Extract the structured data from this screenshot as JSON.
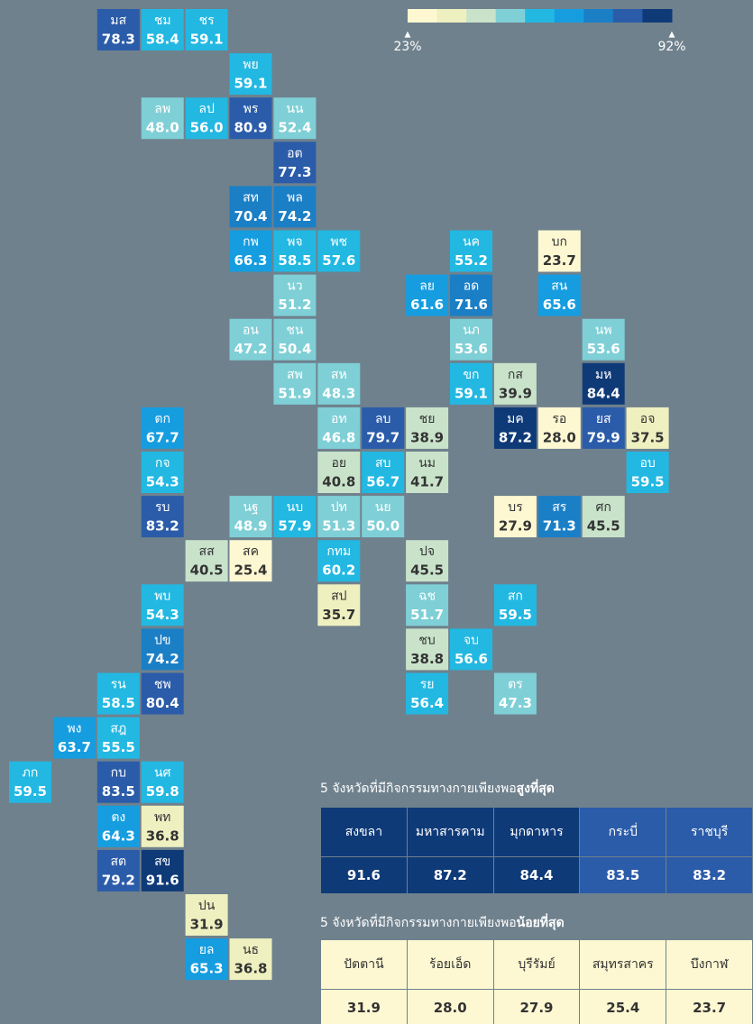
{
  "legend": {
    "colors": [
      "#fdf8d2",
      "#eef0c0",
      "#c9e3cb",
      "#7fcfd6",
      "#22b8e2",
      "#159de0",
      "#1b7fc6",
      "#2b5ca9",
      "#0f3a78"
    ],
    "min": {
      "value": 23,
      "label": "23%"
    },
    "max": {
      "value": 92,
      "label": "92%"
    }
  },
  "tiles": [
    {
      "name": "มส",
      "value": 78.3
    },
    {
      "name": "ชม",
      "value": 58.4
    },
    {
      "name": "ชร",
      "value": 59.1
    },
    {
      "name": "พย",
      "value": 59.1
    },
    {
      "name": "ลพ",
      "value": 48,
      "label": "48.0"
    },
    {
      "name": "ลป",
      "value": 56,
      "label": "56.0"
    },
    {
      "name": "พร",
      "value": 80.9
    },
    {
      "name": "นน",
      "value": 52.4
    },
    {
      "name": "อต",
      "value": 77.3
    },
    {
      "name": "สท",
      "value": 70.4
    },
    {
      "name": "พล",
      "value": 74.2
    },
    {
      "name": "กพ",
      "value": 66.3
    },
    {
      "name": "พจ",
      "value": 58.5
    },
    {
      "name": "พช",
      "value": 57.6
    },
    {
      "name": "นค",
      "value": 55.2
    },
    {
      "name": "บก",
      "value": 23.7
    },
    {
      "name": "นว",
      "value": 51.2
    },
    {
      "name": "ลย",
      "value": 61.6
    },
    {
      "name": "อด",
      "value": 71.6
    },
    {
      "name": "สน",
      "value": 65.6
    },
    {
      "name": "อน",
      "value": 47.2
    },
    {
      "name": "ชน",
      "value": 50.4
    },
    {
      "name": "นภ",
      "value": 53.6
    },
    {
      "name": "นพ",
      "value": 53.6
    },
    {
      "name": "สพ",
      "value": 51.9
    },
    {
      "name": "สห",
      "value": 48.3
    },
    {
      "name": "ขก",
      "value": 59.1
    },
    {
      "name": "กส",
      "value": 39.9
    },
    {
      "name": "มห",
      "value": 84.4
    },
    {
      "name": "ตก",
      "value": 67.7
    },
    {
      "name": "อท",
      "value": 46.8
    },
    {
      "name": "ลบ",
      "value": 79.7
    },
    {
      "name": "ชย",
      "value": 38.9
    },
    {
      "name": "มค",
      "value": 87.2
    },
    {
      "name": "รอ",
      "value": 28,
      "label": "28.0"
    },
    {
      "name": "ยส",
      "value": 79.9
    },
    {
      "name": "อจ",
      "value": 37.5
    },
    {
      "name": "กจ",
      "value": 54.3
    },
    {
      "name": "อย",
      "value": 40.8
    },
    {
      "name": "สบ",
      "value": 56.7
    },
    {
      "name": "นม",
      "value": 41.7
    },
    {
      "name": "อบ",
      "value": 59.5
    },
    {
      "name": "รบ",
      "value": 83.2
    },
    {
      "name": "นฐ",
      "value": 48.9
    },
    {
      "name": "นบ",
      "value": 57.9
    },
    {
      "name": "ปท",
      "value": 51.3
    },
    {
      "name": "นย",
      "value": 50,
      "label": "50.0"
    },
    {
      "name": "บร",
      "value": 27.9
    },
    {
      "name": "สร",
      "value": 71.3
    },
    {
      "name": "ศก",
      "value": 45.5
    },
    {
      "name": "สส",
      "value": 40.5
    },
    {
      "name": "สค",
      "value": 25.4
    },
    {
      "name": "กทม",
      "value": 60.2
    },
    {
      "name": "ปจ",
      "value": 45.5
    },
    {
      "name": "พบ",
      "value": 54.3
    },
    {
      "name": "สป",
      "value": 35.7
    },
    {
      "name": "ฉช",
      "value": 51.7
    },
    {
      "name": "สก",
      "value": 59.5
    },
    {
      "name": "ปข",
      "value": 74.2
    },
    {
      "name": "ชบ",
      "value": 38.8
    },
    {
      "name": "จบ",
      "value": 56.6
    },
    {
      "name": "รน",
      "value": 58.5
    },
    {
      "name": "ชพ",
      "value": 80.4
    },
    {
      "name": "รย",
      "value": 56.4
    },
    {
      "name": "ตร",
      "value": 47.3
    },
    {
      "name": "พง",
      "value": 63.7
    },
    {
      "name": "สฎ",
      "value": 55.5
    },
    {
      "name": "ภก",
      "value": 59.5
    },
    {
      "name": "กบ",
      "value": 83.5
    },
    {
      "name": "นศ",
      "value": 59.8
    },
    {
      "name": "ตง",
      "value": 64.3
    },
    {
      "name": "พท",
      "value": 36.8
    },
    {
      "name": "สต",
      "value": 79.2
    },
    {
      "name": "สข",
      "value": 91.6
    },
    {
      "name": "ปน",
      "value": 31.9
    },
    {
      "name": "ยล",
      "value": 65.3
    },
    {
      "name": "นธ",
      "value": 36.8
    }
  ],
  "top5": {
    "title": "5 จังหวัดที่มีกิจกรรมทางกายเพียงพอ",
    "title_bold": "สูงที่สุด",
    "names": [
      "สงขลา",
      "มหาสารคาม",
      "มุกดาหาร",
      "กระบี่",
      "ราชบุรี"
    ],
    "values": [
      91.6,
      87.2,
      84.4,
      83.5,
      83.2
    ]
  },
  "bottom5": {
    "title": "5 จังหวัดที่มีกิจกรรมทางกายเพียงพอ",
    "title_bold": "น้อยที่สุด",
    "names": [
      "ปัตตานี",
      "ร้อยเอ็ด",
      "บุรีรัมย์",
      "สมุทรสาคร",
      "บึงกาฬ"
    ],
    "values": [
      31.9,
      28,
      27.9,
      25.4,
      23.7
    ],
    "value_labels": [
      "31.9",
      "28.0",
      "27.9",
      "25.4",
      "23.7"
    ]
  }
}
